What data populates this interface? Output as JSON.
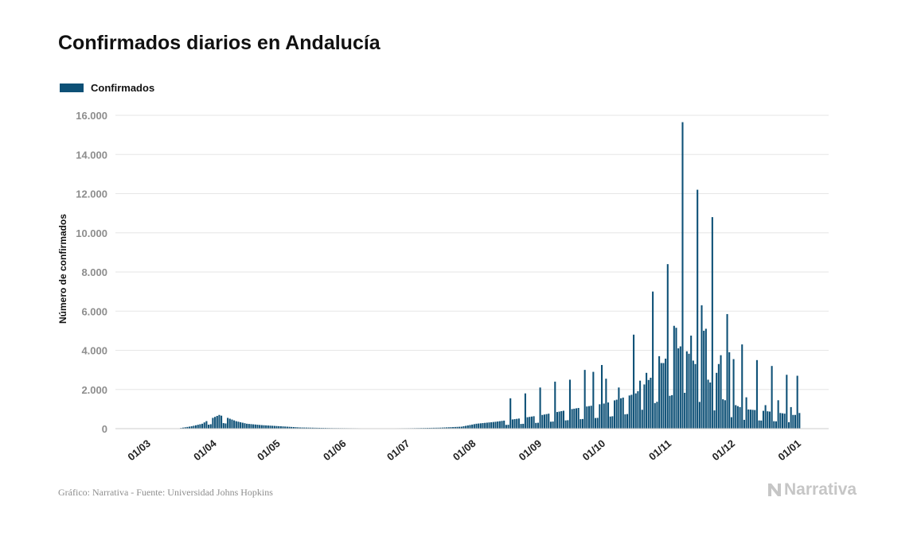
{
  "chart_data": {
    "type": "bar",
    "title": "Confirmados diarios en Andalucía",
    "ylabel": "Número de confirmados",
    "xlabel": "",
    "ylim": [
      0,
      16000
    ],
    "y_ticks": [
      0,
      2000,
      4000,
      6000,
      8000,
      10000,
      12000,
      14000,
      16000
    ],
    "y_tick_labels": [
      "0",
      "2.000",
      "4.000",
      "6.000",
      "8.000",
      "10.000",
      "12.000",
      "14.000",
      "16.000"
    ],
    "x_tick_labels": [
      "01/03",
      "01/04",
      "01/05",
      "01/06",
      "01/07",
      "01/08",
      "01/09",
      "01/10",
      "01/11",
      "01/12",
      "01/01"
    ],
    "x_tick_dates": [
      "2020-03-01",
      "2020-04-01",
      "2020-05-01",
      "2020-06-01",
      "2020-07-01",
      "2020-08-01",
      "2020-09-01",
      "2020-10-01",
      "2020-11-01",
      "2020-12-01",
      "2021-01-01"
    ],
    "grid": true,
    "legend_position": "top-left",
    "series": [
      {
        "name": "Confirmados",
        "color": "#0d5076",
        "keyframes": [
          [
            "2020-03-01",
            0
          ],
          [
            "2020-03-14",
            20
          ],
          [
            "2020-03-20",
            120
          ],
          [
            "2020-03-25",
            250
          ],
          [
            "2020-03-28",
            450
          ],
          [
            "2020-04-02",
            700
          ],
          [
            "2020-04-06",
            550
          ],
          [
            "2020-04-10",
            380
          ],
          [
            "2020-04-15",
            250
          ],
          [
            "2020-04-22",
            180
          ],
          [
            "2020-05-01",
            120
          ],
          [
            "2020-05-10",
            60
          ],
          [
            "2020-05-25",
            30
          ],
          [
            "2020-06-15",
            15
          ],
          [
            "2020-07-01",
            25
          ],
          [
            "2020-07-15",
            50
          ],
          [
            "2020-07-25",
            100
          ],
          [
            "2020-08-01",
            250
          ],
          [
            "2020-08-10",
            350
          ],
          [
            "2020-08-20",
            500
          ],
          [
            "2020-09-01",
            700
          ],
          [
            "2020-09-15",
            1000
          ],
          [
            "2020-10-01",
            1300
          ],
          [
            "2020-10-15",
            1800
          ],
          [
            "2020-10-22",
            2600
          ],
          [
            "2020-10-28",
            3500
          ],
          [
            "2020-11-01",
            3800
          ],
          [
            "2020-11-05",
            4200
          ],
          [
            "2020-11-08",
            4000
          ],
          [
            "2020-11-12",
            3300
          ],
          [
            "2020-11-18",
            2500
          ],
          [
            "2020-11-25",
            1500
          ],
          [
            "2020-12-05",
            1000
          ],
          [
            "2020-12-15",
            900
          ],
          [
            "2020-12-22",
            800
          ],
          [
            "2020-12-28",
            700
          ]
        ],
        "peaks": [
          [
            "2020-08-17",
            1550
          ],
          [
            "2020-08-24",
            1800
          ],
          [
            "2020-08-31",
            2100
          ],
          [
            "2020-09-07",
            2400
          ],
          [
            "2020-09-14",
            2500
          ],
          [
            "2020-09-21",
            3000
          ],
          [
            "2020-09-25",
            2900
          ],
          [
            "2020-09-29",
            3250
          ],
          [
            "2020-10-01",
            2550
          ],
          [
            "2020-10-07",
            2100
          ],
          [
            "2020-10-14",
            4800
          ],
          [
            "2020-10-17",
            2450
          ],
          [
            "2020-10-20",
            2850
          ],
          [
            "2020-10-23",
            7000
          ],
          [
            "2020-10-26",
            3700
          ],
          [
            "2020-10-28",
            3350
          ],
          [
            "2020-10-30",
            8400
          ],
          [
            "2020-11-02",
            5250
          ],
          [
            "2020-11-03",
            5150
          ],
          [
            "2020-11-06",
            15650
          ],
          [
            "2020-11-08",
            3950
          ],
          [
            "2020-11-10",
            4750
          ],
          [
            "2020-11-13",
            12200
          ],
          [
            "2020-11-15",
            6300
          ],
          [
            "2020-11-16",
            5000
          ],
          [
            "2020-11-17",
            5100
          ],
          [
            "2020-11-20",
            10800
          ],
          [
            "2020-11-22",
            2850
          ],
          [
            "2020-11-23",
            3300
          ],
          [
            "2020-11-24",
            3750
          ],
          [
            "2020-11-27",
            5850
          ],
          [
            "2020-11-28",
            3900
          ],
          [
            "2020-11-30",
            3550
          ],
          [
            "2020-12-04",
            4300
          ],
          [
            "2020-12-06",
            1600
          ],
          [
            "2020-12-11",
            3500
          ],
          [
            "2020-12-15",
            1200
          ],
          [
            "2020-12-18",
            3200
          ],
          [
            "2020-12-21",
            1450
          ],
          [
            "2020-12-25",
            2750
          ],
          [
            "2020-12-27",
            1100
          ],
          [
            "2020-12-30",
            2700
          ],
          [
            "2020-12-31",
            800
          ]
        ]
      }
    ]
  },
  "footer": {
    "source": "Gráfico: Narrativa - Fuente: Universidad Johns Hopkins",
    "logo_text": "Narrativa"
  }
}
